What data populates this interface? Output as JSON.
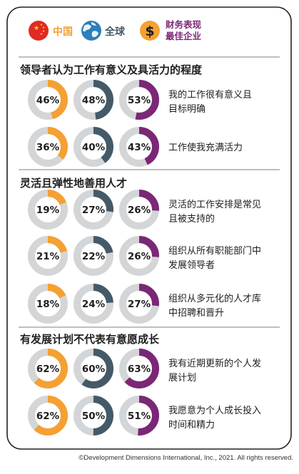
{
  "legend": {
    "items": [
      {
        "label": "中国",
        "color": "#F5A033",
        "icon": "china-flag-icon"
      },
      {
        "label": "全球",
        "color": "#455A69",
        "icon": "globe-icon"
      },
      {
        "label": "财务表现\n最佳企业",
        "color": "#7B2776",
        "icon": "dollar-icon"
      }
    ]
  },
  "colors": {
    "track": "#D3D5D7",
    "china": "#F5A033",
    "global": "#455A69",
    "top": "#7B2776",
    "accent": "#5C2A6A",
    "rule": "#AAAAAA"
  },
  "chart_data": {
    "type": "donut-matrix",
    "series": [
      {
        "name": "中国",
        "color": "#F5A033"
      },
      {
        "name": "全球",
        "color": "#455A69"
      },
      {
        "name": "财务表现最佳企业",
        "color": "#7B2776"
      }
    ],
    "sections": [
      {
        "title": "领导者认为工作有意义及具活力的程度",
        "rows": [
          {
            "label": "我的工作很有意义且\n目标明确",
            "values": [
              46,
              48,
              53
            ]
          },
          {
            "label": "工作使我充满活力",
            "values": [
              36,
              40,
              43
            ]
          }
        ]
      },
      {
        "title": "灵活且弹性地善用人才",
        "rows": [
          {
            "label": "灵活的工作安排是常见\n且被支持的",
            "values": [
              19,
              27,
              26
            ]
          },
          {
            "label": "组织从所有职能部门中\n发展领导者",
            "values": [
              21,
              22,
              26
            ]
          },
          {
            "label": "组织从多元化的人才库\n中招聘和晋升",
            "values": [
              18,
              24,
              27
            ]
          }
        ]
      },
      {
        "title": "有发展计划不代表有意愿成长",
        "rows": [
          {
            "label": "我有近期更新的个人发\n展计划",
            "values": [
              62,
              60,
              63
            ]
          },
          {
            "label": "我愿意为个人成长投入\n时间和精力",
            "values": [
              62,
              50,
              51
            ]
          }
        ]
      }
    ]
  },
  "footer": {
    "copyright": "©Development Dimensions International, Inc., 2021. All rights reserved."
  }
}
